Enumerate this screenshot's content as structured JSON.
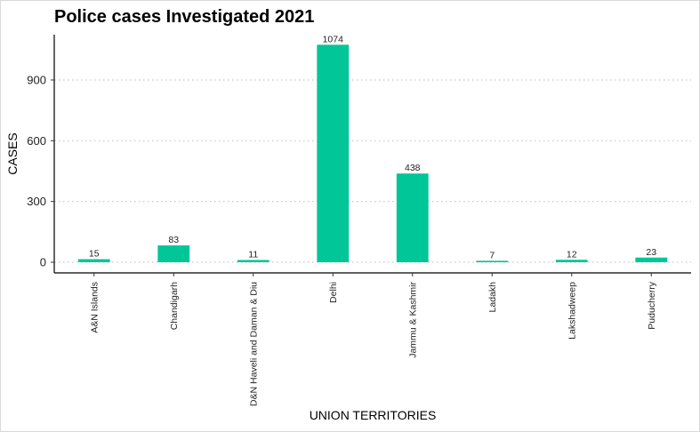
{
  "chart_data": {
    "type": "bar",
    "title": "Police cases Investigated  2021",
    "xlabel": "UNION TERRITORIES",
    "ylabel": "CASES",
    "categories": [
      "A&N Islands",
      "Chandigarh",
      "D&N Haveli and Daman & Diu",
      "Delhi",
      "Jammu & Kashmir",
      "Ladakh",
      "Lakshadweep",
      "Puducherry"
    ],
    "values": [
      15,
      83,
      11,
      1074,
      438,
      7,
      12,
      23
    ],
    "ylim": [
      -40,
      1120
    ],
    "yticks": [
      0,
      300,
      600,
      900
    ],
    "bar_color": "#00c698",
    "grid": "horizontal dotted",
    "legend": "none"
  }
}
